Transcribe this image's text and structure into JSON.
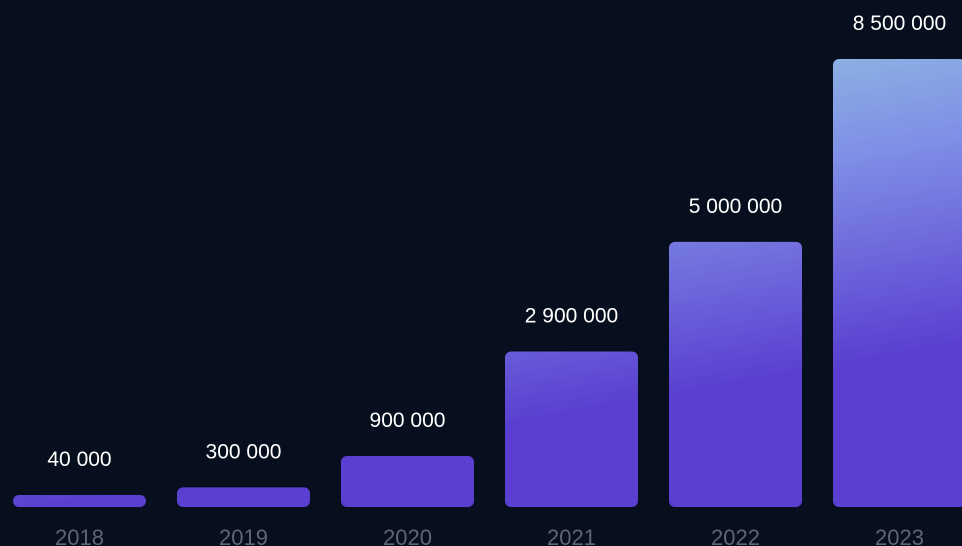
{
  "chart_data": {
    "type": "bar",
    "title": "",
    "xlabel": "",
    "ylabel": "",
    "categories": [
      "2018",
      "2019",
      "2020",
      "2021",
      "2022",
      "2023"
    ],
    "values": [
      40000,
      300000,
      900000,
      2900000,
      5000000,
      8500000
    ],
    "value_labels": [
      "40 000",
      "300 000",
      "900 000",
      "2 900 000",
      "5 000 000",
      "8 500 000"
    ],
    "ylim": [
      0,
      8500000
    ],
    "grid": false,
    "legend": "none",
    "colors": {
      "background": "#070e1d",
      "bar_top": "#9fe3dd",
      "bar_mid": "#7f8ee6",
      "bar_bottom": "#5a3fd0",
      "value_text": "#ffffff",
      "tick_text": "#5f6673"
    }
  }
}
